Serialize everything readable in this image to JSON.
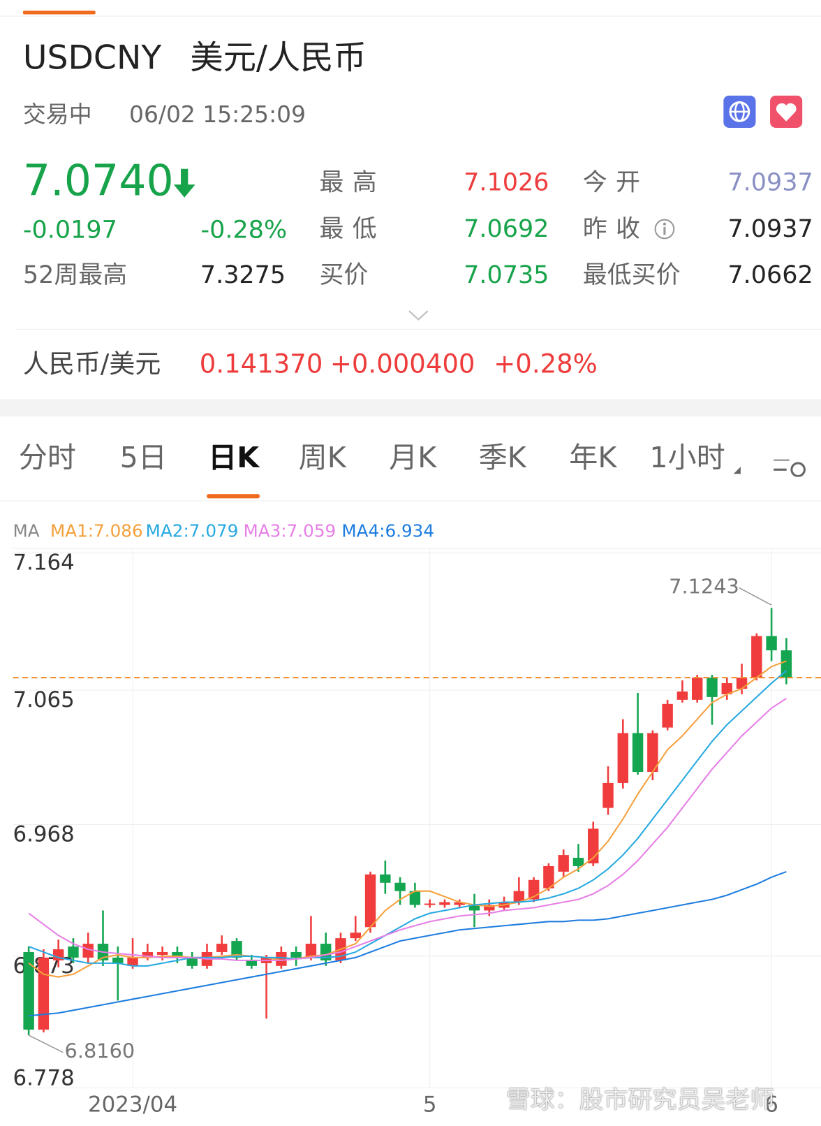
{
  "header": {
    "symbol": "USDCNY",
    "name": "美元/人民币",
    "status": "交易中",
    "time": "06/02 15:25:09"
  },
  "quote": {
    "price": "7.0740",
    "change": "-0.0197",
    "change_pct": "-0.28%"
  },
  "stats": [
    {
      "label": "最高",
      "value": "7.1026"
    },
    {
      "label": "今开",
      "value": "7.0937"
    },
    {
      "label": "最低",
      "value": "7.0692"
    },
    {
      "label": "昨收",
      "value": "7.0937"
    },
    {
      "label": "52周最高",
      "value": "7.3275"
    },
    {
      "label": "买价",
      "value": "7.0735"
    },
    {
      "label": "最低买价",
      "value": "7.0662"
    }
  ],
  "inverse": {
    "pair": "人民币/美元",
    "price": "0.141370",
    "change": "+0.000400",
    "change_pct": "+0.28%"
  },
  "tabs": [
    "分时",
    "5日",
    "日K",
    "周K",
    "月K",
    "季K",
    "年K",
    "1小时"
  ],
  "chart_data": {
    "type": "candlestick",
    "ma_label": "MA",
    "categories": [
      null,
      null,
      null,
      null,
      null,
      null,
      null,
      "2023/04",
      null,
      null,
      null,
      null,
      null,
      null,
      null,
      null,
      null,
      null,
      null,
      null,
      null,
      null,
      null,
      null,
      null,
      null,
      null,
      "5",
      null,
      null,
      null,
      null,
      null,
      null,
      null,
      null,
      null,
      null,
      null,
      null,
      null,
      null,
      null,
      null,
      null,
      null,
      null,
      null,
      null,
      null,
      "6",
      null
    ],
    "open": [
      6.876,
      6.82,
      6.87,
      6.88,
      6.872,
      6.882,
      6.872,
      6.866,
      6.872,
      6.874,
      6.876,
      6.872,
      6.866,
      6.876,
      6.884,
      6.87,
      6.868,
      6.866,
      6.876,
      6.872,
      6.882,
      6.87,
      6.886,
      6.894,
      6.932,
      6.926,
      6.92,
      6.91,
      6.91,
      6.91,
      6.91,
      6.906,
      6.908,
      6.912,
      6.914,
      6.922,
      6.934,
      6.944,
      6.94,
      6.98,
      6.998,
      7.034,
      7.006,
      7.038,
      7.058,
      7.058,
      7.074,
      7.062,
      7.066,
      7.074,
      7.104,
      7.0937
    ],
    "high": [
      6.88,
      6.878,
      6.885,
      6.886,
      6.89,
      6.906,
      6.88,
      6.886,
      6.882,
      6.88,
      6.88,
      6.876,
      6.882,
      6.888,
      6.886,
      6.874,
      6.874,
      6.88,
      6.88,
      6.902,
      6.89,
      6.89,
      6.902,
      6.934,
      6.942,
      6.93,
      6.926,
      6.914,
      6.914,
      6.914,
      6.918,
      6.914,
      6.916,
      6.93,
      6.93,
      6.94,
      6.95,
      6.954,
      6.97,
      7.01,
      7.044,
      7.063,
      7.036,
      7.058,
      7.072,
      7.076,
      7.076,
      7.074,
      7.084,
      7.106,
      7.1243,
      7.1026
    ],
    "low": [
      6.816,
      6.818,
      6.865,
      6.868,
      6.868,
      6.866,
      6.841,
      6.864,
      6.87,
      6.87,
      6.868,
      6.864,
      6.864,
      6.874,
      6.87,
      6.864,
      6.828,
      6.864,
      6.866,
      6.87,
      6.866,
      6.868,
      6.884,
      6.89,
      6.918,
      6.91,
      6.908,
      6.908,
      6.908,
      6.908,
      6.894,
      6.902,
      6.906,
      6.91,
      6.912,
      6.92,
      6.93,
      6.934,
      6.938,
      6.975,
      6.994,
      7.004,
      7.0,
      7.036,
      7.056,
      7.056,
      7.04,
      7.058,
      7.062,
      7.072,
      7.086,
      7.0692
    ],
    "close": [
      6.82,
      6.872,
      6.878,
      6.872,
      6.882,
      6.87,
      6.868,
      6.872,
      6.876,
      6.876,
      6.872,
      6.866,
      6.876,
      6.882,
      6.872,
      6.866,
      6.872,
      6.876,
      6.872,
      6.882,
      6.87,
      6.886,
      6.89,
      6.932,
      6.926,
      6.92,
      6.91,
      6.911,
      6.912,
      6.912,
      6.906,
      6.91,
      6.912,
      6.92,
      6.928,
      6.938,
      6.946,
      6.938,
      6.965,
      6.998,
      7.034,
      7.006,
      7.034,
      7.055,
      7.064,
      7.074,
      7.06,
      7.07,
      7.074,
      7.104,
      7.0937,
      7.074
    ],
    "up_color": "#f03c3c",
    "down_color": "#14a550",
    "last_color": "#f08a24",
    "series": [
      {
        "name": "MA1",
        "label": "MA1:7.086",
        "color": "#f5a03c",
        "values": [
          6.868,
          6.86,
          6.858,
          6.86,
          6.866,
          6.872,
          6.874,
          6.872,
          6.872,
          6.873,
          6.873,
          6.872,
          6.872,
          6.873,
          6.874,
          6.873,
          6.872,
          6.87,
          6.871,
          6.873,
          6.874,
          6.878,
          6.882,
          6.894,
          6.906,
          6.914,
          6.92,
          6.92,
          6.916,
          6.912,
          6.91,
          6.909,
          6.91,
          6.912,
          6.916,
          6.922,
          6.93,
          6.936,
          6.944,
          6.956,
          6.972,
          6.99,
          7.006,
          7.022,
          7.032,
          7.044,
          7.056,
          7.062,
          7.066,
          7.074,
          7.082,
          7.086
        ]
      },
      {
        "name": "MA2",
        "label": "MA2:7.079",
        "color": "#27a9e1",
        "values": [
          6.88,
          6.876,
          6.872,
          6.87,
          6.868,
          6.868,
          6.868,
          6.866,
          6.866,
          6.868,
          6.87,
          6.872,
          6.872,
          6.872,
          6.873,
          6.873,
          6.872,
          6.872,
          6.871,
          6.872,
          6.872,
          6.873,
          6.876,
          6.882,
          6.888,
          6.894,
          6.9,
          6.904,
          6.906,
          6.908,
          6.91,
          6.911,
          6.912,
          6.912,
          6.913,
          6.915,
          6.918,
          6.922,
          6.928,
          6.936,
          6.946,
          6.958,
          6.972,
          6.986,
          7.0,
          7.014,
          7.028,
          7.04,
          7.05,
          7.06,
          7.07,
          7.079
        ]
      },
      {
        "name": "MA3",
        "label": "MA3:7.059",
        "color": "#e67fe6",
        "values": [
          6.904,
          6.896,
          6.888,
          6.882,
          6.878,
          6.876,
          6.875,
          6.874,
          6.873,
          6.872,
          6.872,
          6.872,
          6.871,
          6.871,
          6.87,
          6.87,
          6.87,
          6.87,
          6.871,
          6.872,
          6.874,
          6.876,
          6.88,
          6.884,
          6.888,
          6.892,
          6.895,
          6.898,
          6.9,
          6.902,
          6.903,
          6.904,
          6.906,
          6.907,
          6.908,
          6.91,
          6.912,
          6.914,
          6.918,
          6.924,
          6.932,
          6.942,
          6.954,
          6.966,
          6.98,
          6.994,
          7.008,
          7.02,
          7.032,
          7.042,
          7.052,
          7.059
        ]
      },
      {
        "name": "MA4",
        "label": "MA4:6.934",
        "color": "#1e7de0",
        "values": [
          6.83,
          6.831,
          6.832,
          6.834,
          6.836,
          6.838,
          6.84,
          6.842,
          6.844,
          6.846,
          6.848,
          6.85,
          6.852,
          6.854,
          6.856,
          6.858,
          6.86,
          6.862,
          6.864,
          6.866,
          6.868,
          6.87,
          6.872,
          6.876,
          6.88,
          6.884,
          6.886,
          6.888,
          6.89,
          6.892,
          6.893,
          6.894,
          6.895,
          6.896,
          6.897,
          6.898,
          6.898,
          6.899,
          6.899,
          6.9,
          6.902,
          6.904,
          6.906,
          6.908,
          6.91,
          6.912,
          6.914,
          6.917,
          6.921,
          6.925,
          6.93,
          6.934
        ]
      }
    ],
    "annotations": [
      "7.1243",
      "6.8160"
    ],
    "ylim": [
      6.778,
      7.164
    ],
    "yticks": [
      7.164,
      7.065,
      6.968,
      6.873,
      6.778
    ],
    "grid": true
  },
  "watermark": "雪球：股市研究员吴老师"
}
